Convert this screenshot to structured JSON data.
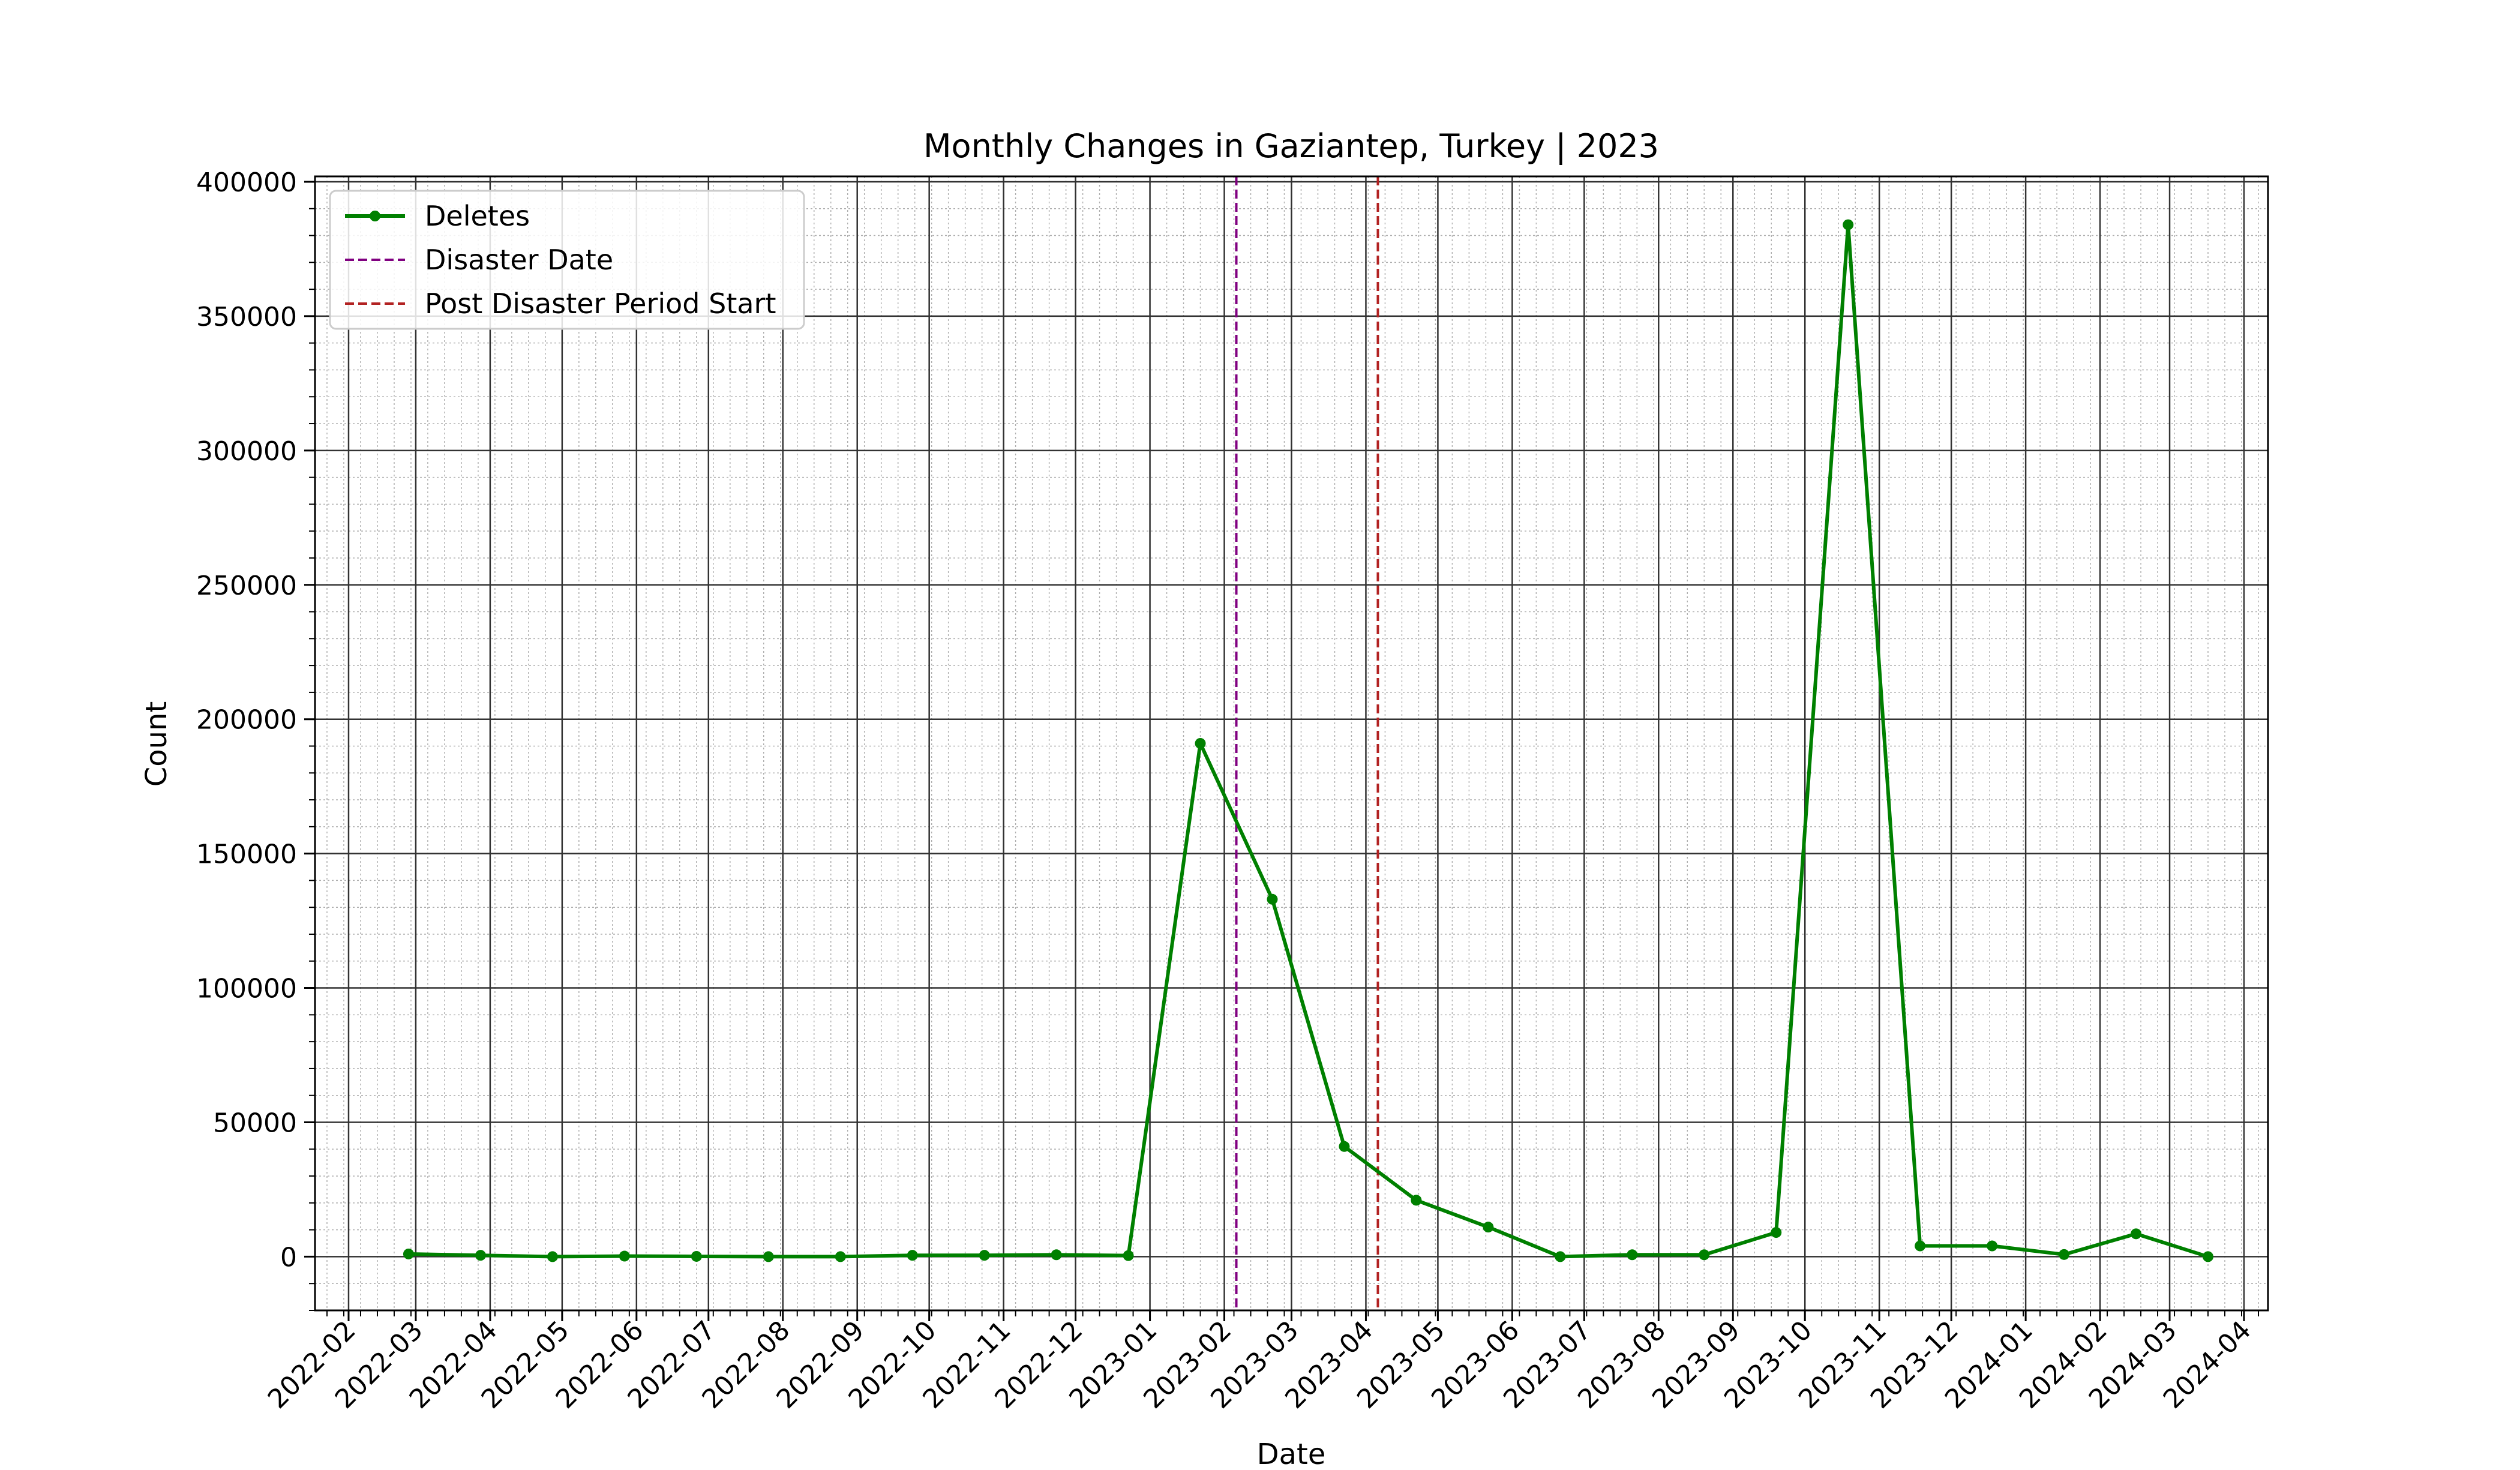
{
  "chart_data": {
    "type": "line",
    "title": "Monthly Changes in Gaziantep, Turkey | 2023",
    "xlabel": "Date",
    "ylabel": "Count",
    "xlim": [
      "2022-01-18",
      "2024-04-11"
    ],
    "ylim": [
      -20000,
      402000
    ],
    "x_ticks": [
      "2022-02",
      "2022-03",
      "2022-04",
      "2022-05",
      "2022-06",
      "2022-07",
      "2022-08",
      "2022-09",
      "2022-10",
      "2022-11",
      "2022-12",
      "2023-01",
      "2023-02",
      "2023-03",
      "2023-04",
      "2023-05",
      "2023-06",
      "2023-07",
      "2023-08",
      "2023-09",
      "2023-10",
      "2023-11",
      "2023-12",
      "2024-01",
      "2024-02",
      "2024-03",
      "2024-04"
    ],
    "y_ticks": [
      0,
      50000,
      100000,
      150000,
      200000,
      250000,
      300000,
      350000,
      400000
    ],
    "grid": true,
    "legend": {
      "position": "top-left"
    },
    "series": [
      {
        "name": "Deletes",
        "color": "#008000",
        "marker": "circle",
        "x": [
          "2022-02-26",
          "2022-03-28",
          "2022-04-27",
          "2022-05-27",
          "2022-06-26",
          "2022-07-26",
          "2022-08-25",
          "2022-09-24",
          "2022-10-24",
          "2022-11-23",
          "2022-12-23",
          "2023-01-22",
          "2023-02-21",
          "2023-03-23",
          "2023-04-22",
          "2023-05-22",
          "2023-06-21",
          "2023-07-21",
          "2023-08-20",
          "2023-09-19",
          "2023-10-19",
          "2023-11-18",
          "2023-12-18",
          "2024-01-17",
          "2024-02-16",
          "2024-03-17"
        ],
        "values": [
          1000,
          500,
          0,
          200,
          100,
          0,
          0,
          500,
          500,
          700,
          400,
          191000,
          133000,
          41000,
          21000,
          11000,
          0,
          700,
          700,
          9000,
          384000,
          4000,
          4000,
          800,
          8500,
          0
        ]
      }
    ],
    "vlines": [
      {
        "name": "Disaster Date",
        "x": "2023-02-06",
        "color": "#800080",
        "style": "dashed"
      },
      {
        "name": "Post Disaster Period Start",
        "x": "2023-04-06",
        "color": "#b22222",
        "style": "dashed"
      }
    ]
  }
}
